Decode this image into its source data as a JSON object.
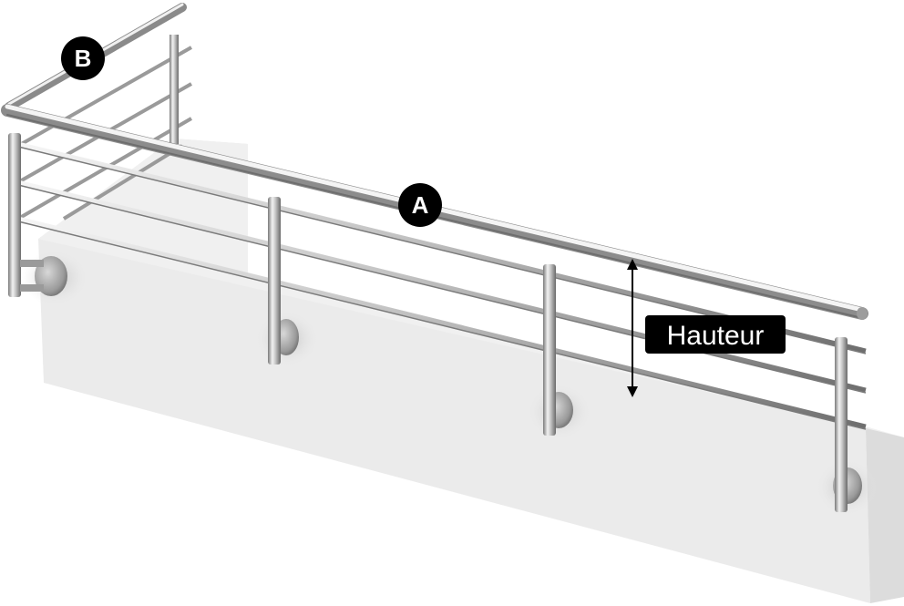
{
  "diagram": {
    "subject": "stainless-steel-railing",
    "labels": {
      "marker_a": "A",
      "marker_b": "B",
      "height": "Hauteur"
    },
    "colors": {
      "background": "#ffffff",
      "wall_front": "#ebebeb",
      "wall_top": "#f2f2f2",
      "wall_side": "#dedede",
      "steel_light": "#f4f4f4",
      "steel_mid": "#b8b8b8",
      "steel_dark": "#6e6e6e",
      "label_bg": "#000000",
      "label_text": "#ffffff"
    }
  }
}
